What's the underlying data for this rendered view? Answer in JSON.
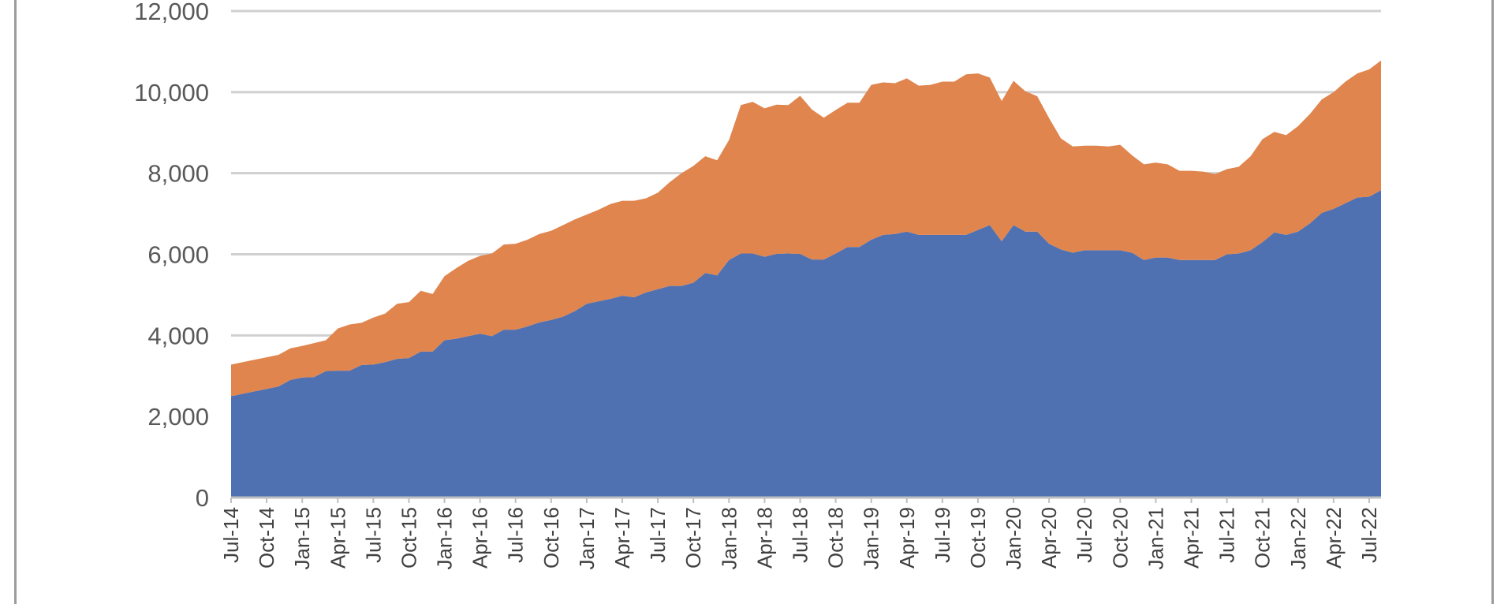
{
  "chart_data": {
    "type": "area",
    "stacked": true,
    "title": "",
    "xlabel": "",
    "ylabel": "",
    "ylim": [
      0,
      12000
    ],
    "yticks": [
      "0",
      "2,000",
      "4,000",
      "6,000",
      "8,000",
      "10,000",
      "12,000"
    ],
    "ytick_values": [
      0,
      2000,
      4000,
      6000,
      8000,
      10000,
      12000
    ],
    "grid": true,
    "legend": "none",
    "x_start_month": "Jul-14",
    "xtick_labels": [
      "Jul-14",
      "Oct-14",
      "Jan-15",
      "Apr-15",
      "Jul-15",
      "Oct-15",
      "Jan-16",
      "Apr-16",
      "Jul-16",
      "Oct-16",
      "Jan-17",
      "Apr-17",
      "Jul-17",
      "Oct-17",
      "Jan-18",
      "Apr-18",
      "Jul-18",
      "Oct-18",
      "Jan-19",
      "Apr-19",
      "Jul-19",
      "Oct-19",
      "Jan-20",
      "Apr-20",
      "Jul-20",
      "Oct-20",
      "Jan-21",
      "Apr-21",
      "Jul-21",
      "Oct-21",
      "Jan-22",
      "Apr-22",
      "Jul-22"
    ],
    "colors": {
      "series_bottom": "#4F71B2",
      "series_top": "#E0854E",
      "grid": "#d0d0d0",
      "axis": "#bfbfbf"
    },
    "series": [
      {
        "values": [
          2500,
          2560,
          2620,
          2680,
          2740,
          2900,
          2960,
          2970,
          3120,
          3130,
          3130,
          3270,
          3280,
          3340,
          3420,
          3440,
          3600,
          3600,
          3880,
          3920,
          3980,
          4040,
          3980,
          4140,
          4140,
          4220,
          4320,
          4380,
          4460,
          4600,
          4780,
          4840,
          4900,
          4980,
          4940,
          5060,
          5140,
          5220,
          5220,
          5300,
          5540,
          5480,
          5860,
          6020,
          6020,
          5940,
          6010,
          6020,
          6010,
          5870,
          5870,
          6020,
          6180,
          6180,
          6360,
          6480,
          6500,
          6560,
          6480,
          6480,
          6480,
          6480,
          6480,
          6600,
          6720,
          6320,
          6720,
          6560,
          6560,
          6260,
          6120,
          6040,
          6100,
          6100,
          6100,
          6100,
          6040,
          5860,
          5920,
          5920,
          5860,
          5860,
          5860,
          5860,
          6000,
          6020,
          6100,
          6300,
          6540,
          6480,
          6560,
          6760,
          7020,
          7120,
          7260,
          7400,
          7420,
          7580
        ]
      },
      {
        "values": [
          780,
          780,
          780,
          780,
          780,
          780,
          780,
          840,
          760,
          1040,
          1140,
          1040,
          1160,
          1200,
          1360,
          1380,
          1500,
          1420,
          1580,
          1740,
          1860,
          1920,
          2040,
          2100,
          2120,
          2140,
          2180,
          2200,
          2260,
          2260,
          2200,
          2260,
          2340,
          2340,
          2380,
          2320,
          2380,
          2560,
          2780,
          2880,
          2880,
          2840,
          2960,
          3660,
          3740,
          3660,
          3680,
          3660,
          3900,
          3700,
          3500,
          3540,
          3560,
          3560,
          3820,
          3760,
          3720,
          3780,
          3680,
          3700,
          3780,
          3780,
          3960,
          3860,
          3640,
          3460,
          3560,
          3460,
          3340,
          3100,
          2740,
          2620,
          2580,
          2580,
          2560,
          2600,
          2400,
          2360,
          2340,
          2300,
          2200,
          2200,
          2180,
          2120,
          2100,
          2140,
          2320,
          2540,
          2480,
          2460,
          2600,
          2700,
          2800,
          2880,
          3000,
          3060,
          3140,
          3200
        ]
      }
    ]
  }
}
